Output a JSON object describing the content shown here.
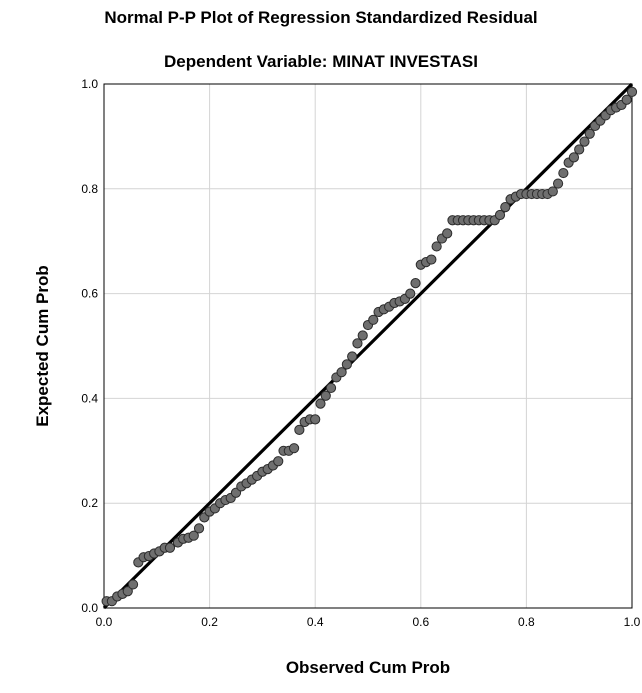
{
  "chart_data": {
    "type": "scatter",
    "title": "Normal P-P Plot of Regression Standardized Residual",
    "subtitle": "Dependent Variable: MINAT INVESTASI",
    "xlabel": "Observed Cum Prob",
    "ylabel": "Expected Cum Prob",
    "xlim": [
      0,
      1
    ],
    "ylim": [
      0,
      1
    ],
    "xticks": [
      "0.0",
      "0.2",
      "0.4",
      "0.6",
      "0.8",
      "1.0"
    ],
    "yticks": [
      "0.0",
      "0.2",
      "0.4",
      "0.6",
      "0.8",
      "1.0"
    ],
    "grid": true,
    "reference_line": [
      [
        0,
        0
      ],
      [
        1,
        1
      ]
    ],
    "point_color": "#6f6f6f",
    "line_color": "#000000",
    "points": [
      [
        0.005,
        0.013
      ],
      [
        0.015,
        0.013
      ],
      [
        0.025,
        0.022
      ],
      [
        0.035,
        0.027
      ],
      [
        0.045,
        0.032
      ],
      [
        0.055,
        0.045
      ],
      [
        0.065,
        0.087
      ],
      [
        0.075,
        0.097
      ],
      [
        0.085,
        0.099
      ],
      [
        0.095,
        0.104
      ],
      [
        0.105,
        0.108
      ],
      [
        0.115,
        0.115
      ],
      [
        0.125,
        0.115
      ],
      [
        0.14,
        0.125
      ],
      [
        0.15,
        0.132
      ],
      [
        0.16,
        0.134
      ],
      [
        0.17,
        0.138
      ],
      [
        0.18,
        0.152
      ],
      [
        0.19,
        0.173
      ],
      [
        0.2,
        0.184
      ],
      [
        0.21,
        0.19
      ],
      [
        0.22,
        0.2
      ],
      [
        0.23,
        0.206
      ],
      [
        0.24,
        0.21
      ],
      [
        0.25,
        0.22
      ],
      [
        0.26,
        0.232
      ],
      [
        0.27,
        0.238
      ],
      [
        0.28,
        0.245
      ],
      [
        0.29,
        0.252
      ],
      [
        0.3,
        0.26
      ],
      [
        0.31,
        0.265
      ],
      [
        0.32,
        0.272
      ],
      [
        0.33,
        0.28
      ],
      [
        0.34,
        0.3
      ],
      [
        0.35,
        0.3
      ],
      [
        0.36,
        0.305
      ],
      [
        0.37,
        0.34
      ],
      [
        0.38,
        0.355
      ],
      [
        0.39,
        0.36
      ],
      [
        0.4,
        0.36
      ],
      [
        0.41,
        0.39
      ],
      [
        0.42,
        0.405
      ],
      [
        0.43,
        0.42
      ],
      [
        0.44,
        0.44
      ],
      [
        0.45,
        0.45
      ],
      [
        0.46,
        0.465
      ],
      [
        0.47,
        0.48
      ],
      [
        0.48,
        0.505
      ],
      [
        0.49,
        0.52
      ],
      [
        0.5,
        0.54
      ],
      [
        0.51,
        0.55
      ],
      [
        0.52,
        0.565
      ],
      [
        0.53,
        0.57
      ],
      [
        0.54,
        0.575
      ],
      [
        0.55,
        0.582
      ],
      [
        0.56,
        0.585
      ],
      [
        0.57,
        0.59
      ],
      [
        0.58,
        0.6
      ],
      [
        0.59,
        0.62
      ],
      [
        0.6,
        0.655
      ],
      [
        0.61,
        0.66
      ],
      [
        0.62,
        0.665
      ],
      [
        0.63,
        0.69
      ],
      [
        0.64,
        0.705
      ],
      [
        0.65,
        0.715
      ],
      [
        0.66,
        0.74
      ],
      [
        0.67,
        0.74
      ],
      [
        0.68,
        0.74
      ],
      [
        0.69,
        0.74
      ],
      [
        0.7,
        0.74
      ],
      [
        0.71,
        0.74
      ],
      [
        0.72,
        0.74
      ],
      [
        0.73,
        0.74
      ],
      [
        0.74,
        0.74
      ],
      [
        0.75,
        0.75
      ],
      [
        0.76,
        0.765
      ],
      [
        0.77,
        0.78
      ],
      [
        0.78,
        0.785
      ],
      [
        0.79,
        0.79
      ],
      [
        0.8,
        0.79
      ],
      [
        0.81,
        0.79
      ],
      [
        0.82,
        0.79
      ],
      [
        0.83,
        0.79
      ],
      [
        0.84,
        0.79
      ],
      [
        0.85,
        0.795
      ],
      [
        0.86,
        0.81
      ],
      [
        0.87,
        0.83
      ],
      [
        0.88,
        0.85
      ],
      [
        0.89,
        0.86
      ],
      [
        0.9,
        0.875
      ],
      [
        0.91,
        0.89
      ],
      [
        0.92,
        0.905
      ],
      [
        0.93,
        0.92
      ],
      [
        0.94,
        0.93
      ],
      [
        0.95,
        0.94
      ],
      [
        0.96,
        0.95
      ],
      [
        0.97,
        0.955
      ],
      [
        0.98,
        0.96
      ],
      [
        0.99,
        0.97
      ],
      [
        1.0,
        0.985
      ]
    ]
  }
}
